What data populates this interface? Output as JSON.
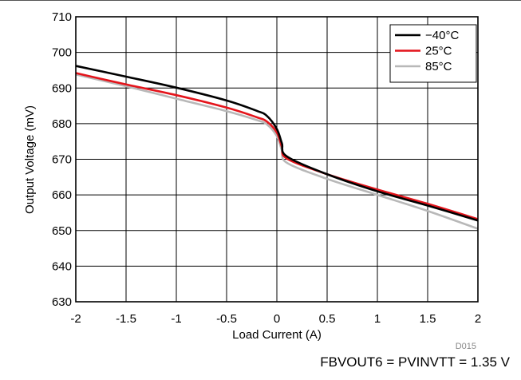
{
  "chart_data": {
    "type": "line",
    "xlabel": "Load Current (A)",
    "ylabel": "Output Voltage (mV)",
    "xlim": [
      -2,
      2
    ],
    "ylim": [
      630,
      710
    ],
    "xticks": [
      -2,
      -1.5,
      -1,
      -0.5,
      0,
      0.5,
      1,
      1.5,
      2
    ],
    "xtick_labels": [
      "-2",
      "-1.5",
      "-1",
      "-0.5",
      "0",
      "0.5",
      "1",
      "1.5",
      "2"
    ],
    "yticks": [
      630,
      640,
      650,
      660,
      670,
      680,
      690,
      700,
      710
    ],
    "grid": true,
    "legend_position": "top-right",
    "series": [
      {
        "name": "−40°C",
        "color": "#000000",
        "x": [
          -2,
          -1.5,
          -1,
          -0.5,
          -0.2,
          -0.1,
          0,
          0.05,
          0.1,
          0.5,
          1,
          1.5,
          2
        ],
        "y": [
          696.2,
          693.2,
          690.1,
          686.5,
          683.6,
          682.2,
          678.5,
          674.5,
          670.8,
          665.8,
          661.0,
          657.0,
          652.8
        ]
      },
      {
        "name": "25°C",
        "color": "#e4141b",
        "x": [
          -2,
          -1.5,
          -1,
          -0.5,
          -0.2,
          -0.1,
          0,
          0.05,
          0.1,
          0.5,
          1,
          1.5,
          2
        ],
        "y": [
          694.2,
          691.0,
          688.0,
          684.5,
          681.8,
          680.6,
          677.5,
          673.5,
          670.2,
          665.8,
          661.5,
          657.5,
          653.2
        ]
      },
      {
        "name": "85°C",
        "color": "#b8b8b8",
        "x": [
          -2,
          -1.5,
          -1,
          -0.5,
          -0.2,
          -0.1,
          0,
          0.05,
          0.1,
          0.5,
          1,
          1.5,
          2
        ],
        "y": [
          693.8,
          690.5,
          687.0,
          683.5,
          681.0,
          679.8,
          676.5,
          672.5,
          669.0,
          664.5,
          660.0,
          655.5,
          650.5
        ]
      }
    ],
    "figure_id": "D015",
    "caption": "FBVOUT6 = PVINVTT = 1.35 V"
  }
}
